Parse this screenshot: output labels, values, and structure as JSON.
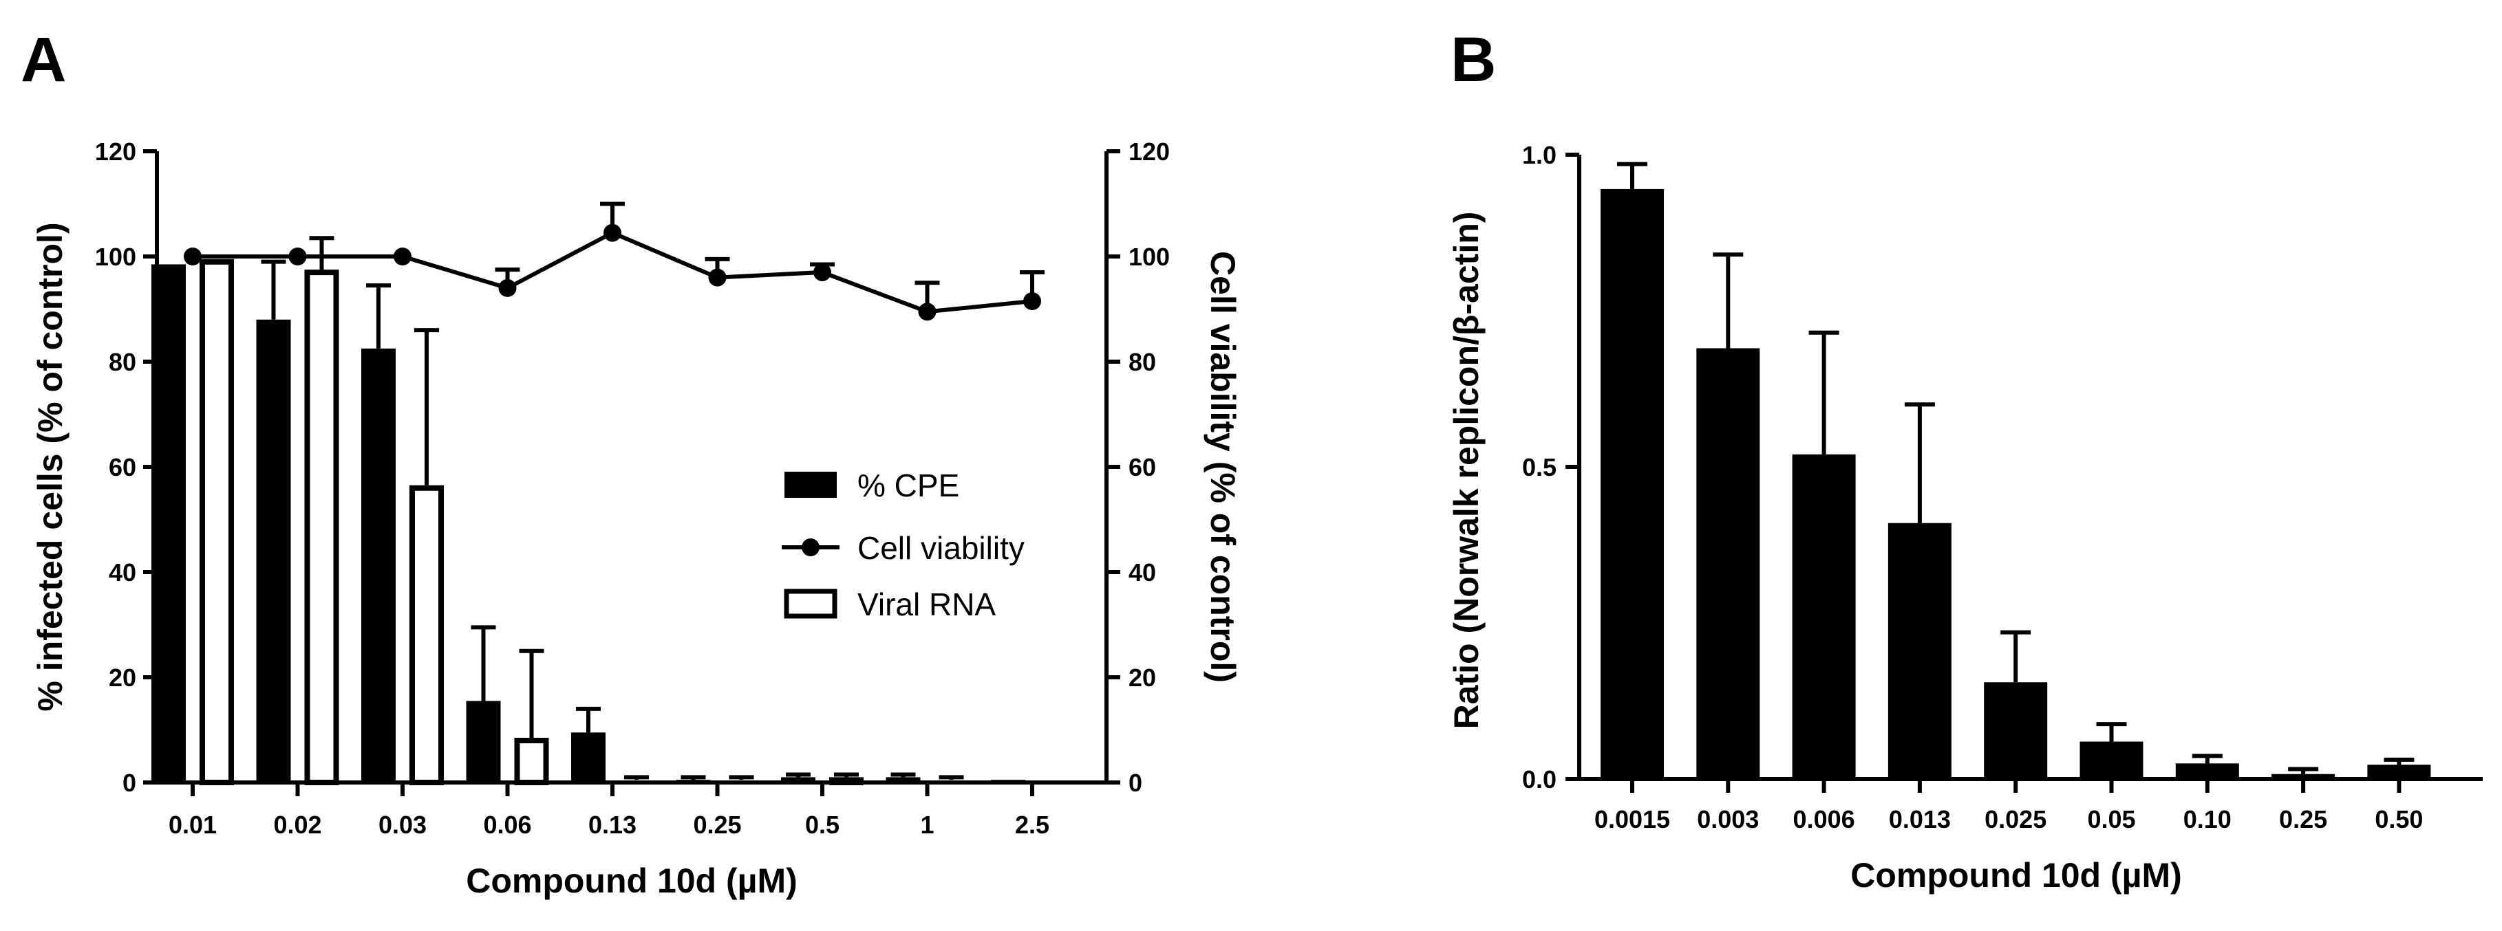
{
  "panels": [
    "A",
    "B"
  ],
  "chart_data": [
    {
      "panel": "A",
      "type": "bar",
      "categories": [
        "0.01",
        "0.02",
        "0.03",
        "0.06",
        "0.13",
        "0.25",
        "0.5",
        "1",
        "2.5"
      ],
      "xlabel": "Compound 10d (µM)",
      "ylabel": "% infected cells (% of control)",
      "ylabel_right": "Cell viability (% of control)",
      "ylim": [
        0,
        120
      ],
      "ylim_right": [
        0,
        120
      ],
      "yticks": [
        "0",
        "20",
        "40",
        "60",
        "80",
        "100",
        "120"
      ],
      "yticks_right": [
        "0",
        "20",
        "40",
        "60",
        "80",
        "100",
        "120"
      ],
      "legend": [
        "% CPE",
        "Cell viability",
        "Viral RNA"
      ],
      "legend_position": "center-right",
      "series": [
        {
          "name": "% CPE",
          "kind": "bar",
          "fill": "#000000",
          "values": [
            98.5,
            88,
            82.5,
            15.5,
            9.5,
            0.5,
            1,
            1,
            0.5
          ],
          "errors": [
            0,
            11,
            12,
            14,
            4.5,
            0.5,
            0.5,
            0.5,
            0
          ]
        },
        {
          "name": "Viral RNA",
          "kind": "bar",
          "fill": "#ffffff",
          "values": [
            99.5,
            97.5,
            56.5,
            8.5,
            0.5,
            0.5,
            1,
            0.5,
            0
          ],
          "errors": [
            0,
            6,
            29.5,
            16.5,
            0.5,
            0.5,
            0.5,
            0.5,
            0
          ]
        },
        {
          "name": "Cell viability",
          "kind": "line",
          "axis": "right",
          "values": [
            100,
            100,
            100,
            94,
            104.5,
            96,
            97,
            89.5,
            91.5
          ],
          "errors": [
            0,
            0,
            0,
            3.5,
            5.5,
            3.5,
            1.5,
            5.5,
            5.5
          ]
        }
      ]
    },
    {
      "panel": "B",
      "type": "bar",
      "categories": [
        "0.0015",
        "0.003",
        "0.006",
        "0.013",
        "0.025",
        "0.05",
        "0.10",
        "0.25",
        "0.50"
      ],
      "xlabel": "Compound 10d (µM)",
      "ylabel": "Ratio (Norwalk replicon/β-actin)",
      "ylim": [
        0,
        1.0
      ],
      "yticks": [
        "0.0",
        "0.5",
        "1.0"
      ],
      "series": [
        {
          "name": "Ratio",
          "kind": "bar",
          "fill": "#000000",
          "values": [
            0.945,
            0.69,
            0.52,
            0.41,
            0.155,
            0.06,
            0.025,
            0.008,
            0.023
          ],
          "errors": [
            0.04,
            0.15,
            0.195,
            0.19,
            0.08,
            0.028,
            0.012,
            0.008,
            0.008
          ]
        }
      ]
    }
  ]
}
